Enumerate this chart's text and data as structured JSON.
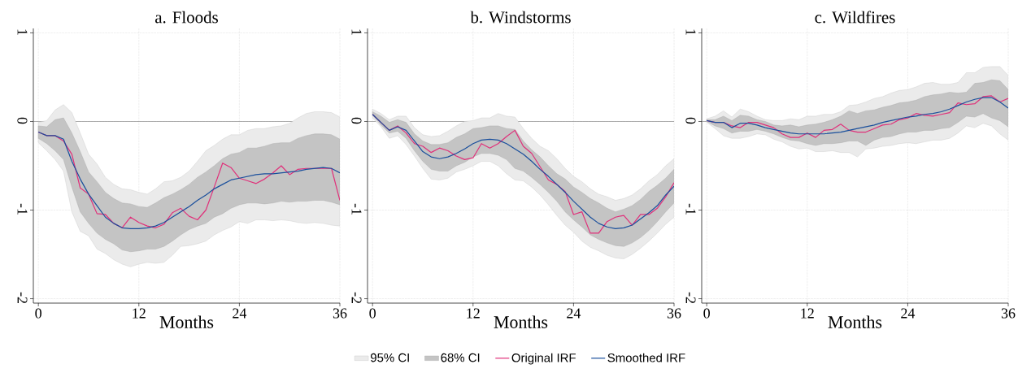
{
  "chart_data": [
    {
      "type": "line",
      "title": "a. Floods",
      "xlabel": "Months",
      "x": [
        0,
        1,
        2,
        3,
        4,
        5,
        6,
        7,
        8,
        9,
        10,
        11,
        12,
        13,
        14,
        15,
        16,
        17,
        18,
        19,
        20,
        21,
        22,
        23,
        24,
        25,
        26,
        27,
        28,
        29,
        30,
        31,
        32,
        33,
        34,
        35,
        36
      ],
      "xlim": [
        -0.6,
        36
      ],
      "ylim": [
        -2.05,
        1.05
      ],
      "xticks": [
        0,
        12,
        24,
        36
      ],
      "yticks": [
        -2,
        -1,
        0,
        1
      ],
      "grid": true,
      "ref_lines": [
        {
          "axis": "y",
          "value": 0,
          "color": "#8c8c8c"
        }
      ],
      "series": [
        {
          "color": "#ebebeb",
          "values": [
            null,
            null,
            null,
            null,
            null,
            null,
            null,
            null,
            null,
            null,
            null,
            null,
            null,
            null,
            null,
            null,
            null,
            null,
            null,
            null,
            null,
            null,
            null,
            null,
            null,
            null,
            null,
            null,
            null,
            null,
            null,
            null,
            null,
            null,
            null,
            null,
            null
          ],
          "upper": [
            -0.01,
            0.01,
            0.13,
            0.19,
            0.1,
            -0.13,
            -0.37,
            -0.48,
            -0.63,
            -0.71,
            -0.76,
            -0.77,
            -0.8,
            -0.82,
            -0.76,
            -0.68,
            -0.67,
            -0.63,
            -0.56,
            -0.45,
            -0.33,
            -0.27,
            -0.2,
            -0.15,
            -0.15,
            -0.1,
            -0.08,
            -0.08,
            -0.06,
            -0.05,
            -0.02,
            0.04,
            0.09,
            0.11,
            0.11,
            0.1,
            0.05
          ],
          "lower": [
            -0.24,
            -0.33,
            -0.43,
            -0.56,
            -1.02,
            -1.24,
            -1.29,
            -1.44,
            -1.49,
            -1.56,
            -1.61,
            -1.64,
            -1.61,
            -1.59,
            -1.6,
            -1.59,
            -1.51,
            -1.41,
            -1.4,
            -1.38,
            -1.35,
            -1.28,
            -1.23,
            -1.19,
            -1.13,
            -1.15,
            -1.11,
            -1.11,
            -1.12,
            -1.11,
            -1.12,
            -1.14,
            -1.15,
            -1.14,
            -1.15,
            -1.17,
            -1.18
          ]
        },
        {
          "color": "#c4c4c4",
          "values": [
            null,
            null,
            null,
            null,
            null,
            null,
            null,
            null,
            null,
            null,
            null,
            null,
            null,
            null,
            null,
            null,
            null,
            null,
            null,
            null,
            null,
            null,
            null,
            null,
            null,
            null,
            null,
            null,
            null,
            null,
            null,
            null,
            null,
            null,
            null,
            null,
            null
          ],
          "upper": [
            -0.05,
            -0.06,
            0.02,
            0.04,
            -0.13,
            -0.34,
            -0.57,
            -0.68,
            -0.8,
            -0.87,
            -0.92,
            -0.93,
            -0.96,
            -0.97,
            -0.92,
            -0.86,
            -0.82,
            -0.77,
            -0.71,
            -0.63,
            -0.57,
            -0.5,
            -0.42,
            -0.37,
            -0.35,
            -0.3,
            -0.3,
            -0.28,
            -0.25,
            -0.24,
            -0.24,
            -0.19,
            -0.16,
            -0.14,
            -0.14,
            -0.15,
            -0.2
          ],
          "lower": [
            -0.19,
            -0.25,
            -0.33,
            -0.43,
            -0.74,
            -1.02,
            -1.15,
            -1.26,
            -1.33,
            -1.38,
            -1.45,
            -1.47,
            -1.46,
            -1.44,
            -1.44,
            -1.41,
            -1.35,
            -1.28,
            -1.22,
            -1.18,
            -1.15,
            -1.08,
            -1.04,
            -0.98,
            -0.94,
            -0.92,
            -0.92,
            -0.93,
            -0.92,
            -0.9,
            -0.91,
            -0.9,
            -0.9,
            -0.89,
            -0.89,
            -0.91,
            -0.94
          ]
        },
        {
          "color": "#e0307a",
          "values": [
            -0.12,
            -0.16,
            -0.16,
            -0.22,
            -0.37,
            -0.75,
            -0.82,
            -1.04,
            -1.05,
            -1.15,
            -1.2,
            -1.08,
            -1.14,
            -1.18,
            -1.2,
            -1.16,
            -1.03,
            -0.98,
            -1.07,
            -1.11,
            -1.0,
            -0.74,
            -0.47,
            -0.52,
            -0.64,
            -0.67,
            -0.7,
            -0.65,
            -0.58,
            -0.5,
            -0.6,
            -0.54,
            -0.53,
            -0.53,
            -0.53,
            -0.53,
            -0.89
          ]
        },
        {
          "color": "#1a4f9c",
          "values": [
            -0.12,
            -0.16,
            -0.16,
            -0.2,
            -0.45,
            -0.65,
            -0.82,
            -0.95,
            -1.08,
            -1.15,
            -1.2,
            -1.21,
            -1.21,
            -1.2,
            -1.18,
            -1.14,
            -1.08,
            -1.02,
            -0.96,
            -0.89,
            -0.83,
            -0.76,
            -0.71,
            -0.66,
            -0.64,
            -0.62,
            -0.6,
            -0.59,
            -0.59,
            -0.58,
            -0.57,
            -0.56,
            -0.54,
            -0.53,
            -0.52,
            -0.53,
            -0.58
          ]
        }
      ]
    },
    {
      "type": "line",
      "title": "b. Windstorms",
      "xlabel": "Months",
      "x": [
        0,
        1,
        2,
        3,
        4,
        5,
        6,
        7,
        8,
        9,
        10,
        11,
        12,
        13,
        14,
        15,
        16,
        17,
        18,
        19,
        20,
        21,
        22,
        23,
        24,
        25,
        26,
        27,
        28,
        29,
        30,
        31,
        32,
        33,
        34,
        35,
        36
      ],
      "xlim": [
        -0.6,
        36
      ],
      "ylim": [
        -2.05,
        1.05
      ],
      "xticks": [
        0,
        12,
        24,
        36
      ],
      "yticks": [
        -2,
        -1,
        0,
        1
      ],
      "grid": true,
      "legend": "bottom",
      "ref_lines": [
        {
          "axis": "y",
          "value": 0,
          "color": "#8c8c8c"
        }
      ],
      "series": [
        {
          "name": "95% CI",
          "color": "#ebebeb",
          "values": [
            null,
            null,
            null,
            null,
            null,
            null,
            null,
            null,
            null,
            null,
            null,
            null,
            null,
            null,
            null,
            null,
            null,
            null,
            null,
            null,
            null,
            null,
            null,
            null,
            null,
            null,
            null,
            null,
            null,
            null,
            null,
            null,
            null,
            null,
            null,
            null,
            null
          ],
          "upper": [
            0.14,
            0.09,
            0.02,
            0.06,
            0.06,
            -0.07,
            -0.15,
            -0.17,
            -0.16,
            -0.11,
            -0.05,
            0.0,
            0.01,
            0.04,
            0.04,
            0.09,
            0.06,
            0.05,
            -0.08,
            -0.19,
            -0.28,
            -0.33,
            -0.42,
            -0.53,
            -0.62,
            -0.68,
            -0.76,
            -0.82,
            -0.85,
            -0.89,
            -0.87,
            -0.83,
            -0.76,
            -0.67,
            -0.6,
            -0.5,
            -0.42
          ],
          "lower": [
            0.04,
            -0.06,
            -0.19,
            -0.16,
            -0.26,
            -0.39,
            -0.53,
            -0.65,
            -0.66,
            -0.64,
            -0.57,
            -0.54,
            -0.5,
            -0.45,
            -0.45,
            -0.5,
            -0.59,
            -0.66,
            -0.67,
            -0.74,
            -0.83,
            -0.94,
            -1.06,
            -1.17,
            -1.25,
            -1.35,
            -1.42,
            -1.46,
            -1.51,
            -1.54,
            -1.55,
            -1.5,
            -1.43,
            -1.35,
            -1.26,
            -1.16,
            -1.08
          ]
        },
        {
          "name": "68% CI",
          "color": "#c4c4c4",
          "values": [
            null,
            null,
            null,
            null,
            null,
            null,
            null,
            null,
            null,
            null,
            null,
            null,
            null,
            null,
            null,
            null,
            null,
            null,
            null,
            null,
            null,
            null,
            null,
            null,
            null,
            null,
            null,
            null,
            null,
            null,
            null,
            null,
            null,
            null,
            null,
            null,
            null
          ],
          "upper": [
            0.11,
            0.06,
            -0.01,
            0.02,
            -0.01,
            -0.14,
            -0.22,
            -0.26,
            -0.26,
            -0.24,
            -0.18,
            -0.14,
            -0.08,
            -0.07,
            -0.05,
            -0.05,
            -0.08,
            -0.09,
            -0.22,
            -0.32,
            -0.4,
            -0.5,
            -0.59,
            -0.65,
            -0.74,
            -0.8,
            -0.87,
            -0.92,
            -0.98,
            -1.02,
            -0.99,
            -0.95,
            -0.88,
            -0.79,
            -0.72,
            -0.64,
            -0.54
          ],
          "lower": [
            0.07,
            -0.04,
            -0.13,
            -0.11,
            -0.19,
            -0.33,
            -0.45,
            -0.54,
            -0.56,
            -0.56,
            -0.5,
            -0.46,
            -0.4,
            -0.36,
            -0.36,
            -0.38,
            -0.43,
            -0.53,
            -0.56,
            -0.63,
            -0.71,
            -0.8,
            -0.9,
            -1.02,
            -1.11,
            -1.19,
            -1.28,
            -1.33,
            -1.37,
            -1.4,
            -1.41,
            -1.37,
            -1.31,
            -1.23,
            -1.13,
            -1.02,
            -0.92
          ]
        },
        {
          "name": "Original IRF",
          "color": "#e0307a",
          "values": [
            0.08,
            -0.01,
            -0.1,
            -0.05,
            -0.13,
            -0.25,
            -0.28,
            -0.35,
            -0.3,
            -0.33,
            -0.39,
            -0.43,
            -0.41,
            -0.25,
            -0.3,
            -0.25,
            -0.17,
            -0.1,
            -0.28,
            -0.36,
            -0.51,
            -0.66,
            -0.71,
            -0.79,
            -1.05,
            -1.02,
            -1.26,
            -1.26,
            -1.13,
            -1.08,
            -1.06,
            -1.17,
            -1.05,
            -1.05,
            -0.98,
            -0.85,
            -0.69
          ]
        },
        {
          "name": "Smoothed IRF",
          "color": "#1a4f9c",
          "values": [
            0.08,
            -0.01,
            -0.1,
            -0.06,
            -0.1,
            -0.22,
            -0.34,
            -0.4,
            -0.42,
            -0.4,
            -0.36,
            -0.31,
            -0.25,
            -0.21,
            -0.2,
            -0.21,
            -0.25,
            -0.31,
            -0.37,
            -0.45,
            -0.54,
            -0.62,
            -0.71,
            -0.8,
            -0.9,
            -0.99,
            -1.08,
            -1.15,
            -1.19,
            -1.21,
            -1.2,
            -1.17,
            -1.1,
            -1.03,
            -0.95,
            -0.83,
            -0.73
          ]
        }
      ]
    },
    {
      "type": "line",
      "title": "c. Wildfires",
      "xlabel": "Months",
      "x": [
        0,
        1,
        2,
        3,
        4,
        5,
        6,
        7,
        8,
        9,
        10,
        11,
        12,
        13,
        14,
        15,
        16,
        17,
        18,
        19,
        20,
        21,
        22,
        23,
        24,
        25,
        26,
        27,
        28,
        29,
        30,
        31,
        32,
        33,
        34,
        35,
        36
      ],
      "xlim": [
        -0.6,
        36
      ],
      "ylim": [
        -2.05,
        1.05
      ],
      "xticks": [
        0,
        12,
        24,
        36
      ],
      "yticks": [
        -2,
        -1,
        0,
        1
      ],
      "grid": true,
      "ref_lines": [
        {
          "axis": "y",
          "value": 0,
          "color": "#8c8c8c"
        }
      ],
      "series": [
        {
          "color": "#ebebeb",
          "values": [
            null,
            null,
            null,
            null,
            null,
            null,
            null,
            null,
            null,
            null,
            null,
            null,
            null,
            null,
            null,
            null,
            null,
            null,
            null,
            null,
            null,
            null,
            null,
            null,
            null,
            null,
            null,
            null,
            null,
            null,
            null,
            null,
            null,
            null,
            null,
            null,
            null
          ],
          "upper": [
            0.03,
            0.06,
            0.12,
            0.05,
            0.14,
            0.11,
            0.06,
            0.02,
            0.01,
            0.01,
            0.03,
            0.02,
            0.06,
            0.06,
            0.08,
            0.08,
            0.11,
            0.18,
            0.19,
            0.22,
            0.26,
            0.28,
            0.32,
            0.35,
            0.36,
            0.39,
            0.43,
            0.44,
            0.42,
            0.42,
            0.44,
            0.55,
            0.55,
            0.61,
            0.62,
            0.62,
            0.52
          ],
          "lower": [
            -0.01,
            -0.08,
            -0.16,
            -0.19,
            -0.19,
            -0.17,
            -0.14,
            -0.15,
            -0.2,
            -0.23,
            -0.28,
            -0.31,
            -0.3,
            -0.34,
            -0.34,
            -0.33,
            -0.35,
            -0.35,
            -0.4,
            -0.31,
            -0.3,
            -0.28,
            -0.27,
            -0.25,
            -0.24,
            -0.25,
            -0.23,
            -0.21,
            -0.21,
            -0.19,
            -0.13,
            -0.05,
            -0.07,
            -0.02,
            -0.05,
            -0.14,
            -0.21
          ]
        },
        {
          "color": "#c4c4c4",
          "values": [
            null,
            null,
            null,
            null,
            null,
            null,
            null,
            null,
            null,
            null,
            null,
            null,
            null,
            null,
            null,
            null,
            null,
            null,
            null,
            null,
            null,
            null,
            null,
            null,
            null,
            null,
            null,
            null,
            null,
            null,
            null,
            null,
            null,
            null,
            null,
            null,
            null
          ],
          "upper": [
            0.02,
            0.02,
            0.06,
            0.01,
            0.07,
            0.06,
            0.02,
            0.0,
            -0.04,
            -0.05,
            -0.04,
            -0.06,
            -0.04,
            -0.03,
            -0.01,
            0.02,
            0.06,
            0.12,
            0.09,
            0.12,
            0.13,
            0.16,
            0.18,
            0.21,
            0.22,
            0.24,
            0.28,
            0.3,
            0.31,
            0.33,
            0.32,
            0.33,
            0.43,
            0.44,
            0.47,
            0.46,
            0.36
          ],
          "lower": [
            0.0,
            -0.05,
            -0.08,
            -0.13,
            -0.11,
            -0.11,
            -0.09,
            -0.11,
            -0.14,
            -0.18,
            -0.21,
            -0.22,
            -0.25,
            -0.27,
            -0.25,
            -0.25,
            -0.24,
            -0.22,
            -0.22,
            -0.27,
            -0.21,
            -0.18,
            -0.17,
            -0.14,
            -0.12,
            -0.12,
            -0.1,
            -0.1,
            -0.08,
            -0.07,
            -0.01,
            0.06,
            0.05,
            0.09,
            0.04,
            0.01,
            -0.06
          ]
        },
        {
          "color": "#e0307a",
          "values": [
            0.01,
            -0.01,
            -0.01,
            -0.05,
            -0.07,
            -0.01,
            -0.01,
            -0.04,
            -0.07,
            -0.14,
            -0.18,
            -0.18,
            -0.13,
            -0.18,
            -0.1,
            -0.09,
            -0.03,
            -0.1,
            -0.12,
            -0.12,
            -0.08,
            -0.04,
            -0.03,
            0.02,
            0.04,
            0.09,
            0.07,
            0.06,
            0.08,
            0.1,
            0.21,
            0.19,
            0.2,
            0.28,
            0.29,
            0.22,
            0.26
          ]
        },
        {
          "color": "#1a4f9c",
          "values": [
            0.01,
            -0.01,
            -0.01,
            -0.07,
            -0.02,
            -0.02,
            -0.04,
            -0.07,
            -0.09,
            -0.11,
            -0.13,
            -0.14,
            -0.14,
            -0.14,
            -0.14,
            -0.13,
            -0.12,
            -0.1,
            -0.08,
            -0.06,
            -0.04,
            -0.01,
            0.01,
            0.03,
            0.05,
            0.06,
            0.08,
            0.09,
            0.11,
            0.14,
            0.18,
            0.22,
            0.25,
            0.27,
            0.27,
            0.22,
            0.15
          ]
        }
      ]
    }
  ]
}
